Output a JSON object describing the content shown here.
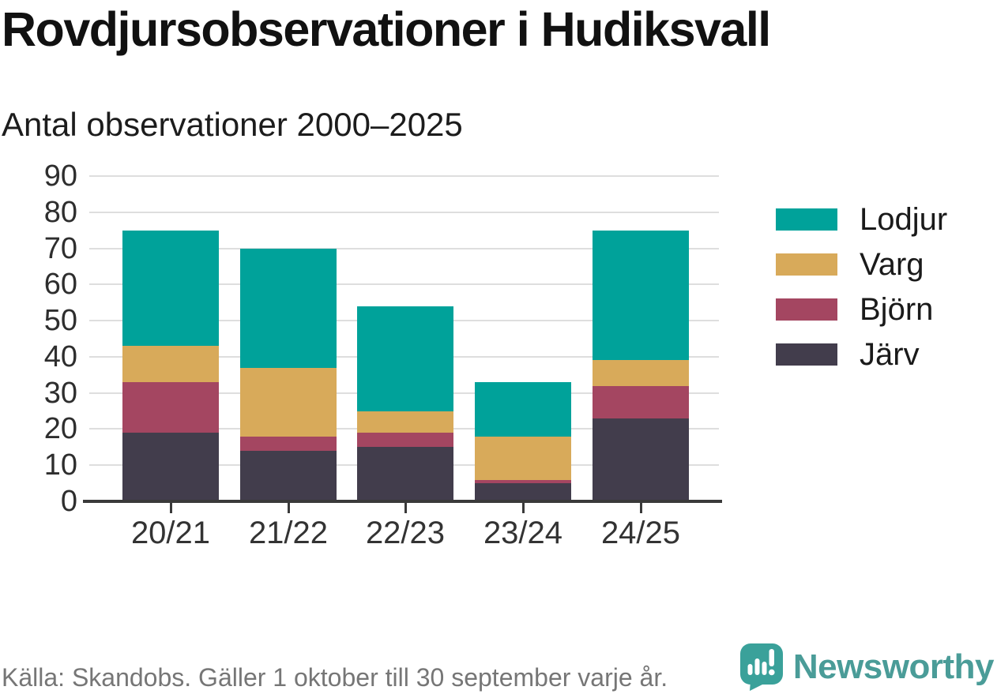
{
  "header": {
    "title": "Rovdjursobservationer i Hudiksvall",
    "subtitle": "Antal observationer 2000–2025"
  },
  "chart_data": {
    "type": "bar",
    "stacked": true,
    "title": "Rovdjursobservationer i Hudiksvall",
    "subtitle": "Antal observationer 2000–2025",
    "categories": [
      "20/21",
      "21/22",
      "22/23",
      "23/24",
      "24/25"
    ],
    "series": [
      {
        "name": "Järv",
        "color": "#423d4c",
        "values": [
          19,
          14,
          15,
          5,
          23
        ]
      },
      {
        "name": "Björn",
        "color": "#a44661",
        "values": [
          14,
          4,
          4,
          1,
          9
        ]
      },
      {
        "name": "Varg",
        "color": "#d8aa5a",
        "values": [
          10,
          19,
          6,
          12,
          7
        ]
      },
      {
        "name": "Lodjur",
        "color": "#00a29a",
        "values": [
          32,
          33,
          29,
          15,
          36
        ]
      }
    ],
    "totals": [
      75,
      70,
      54,
      33,
      75
    ],
    "ylim": [
      0,
      90
    ],
    "yticks": [
      0,
      10,
      20,
      30,
      40,
      50,
      60,
      70,
      80,
      90
    ],
    "xlabel": "",
    "ylabel": "",
    "grid": true,
    "legend_position": "right",
    "legend_order": [
      "Lodjur",
      "Varg",
      "Björn",
      "Järv"
    ]
  },
  "footer": {
    "source": "Källa: Skandobs. Gäller 1 oktober till 30 september varje år."
  },
  "branding": {
    "name": "Newsworthy",
    "icon": "bar-chart-speech-bubble-icon",
    "text_color": "#4a9c98",
    "icon_color": "#3aa19a"
  }
}
